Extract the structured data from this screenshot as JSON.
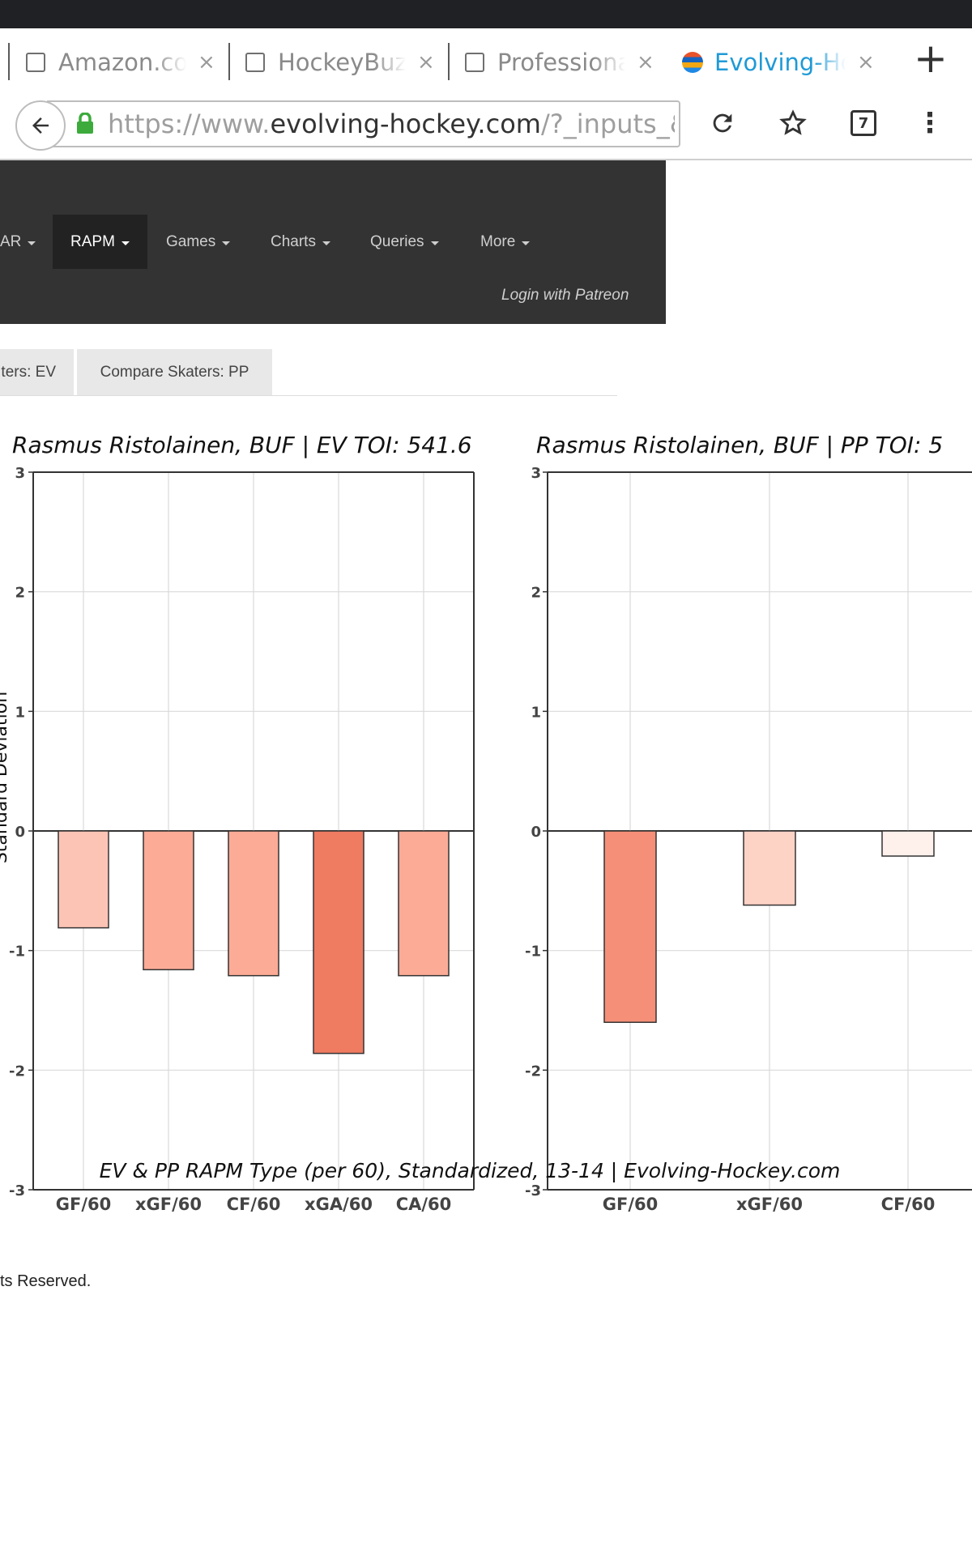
{
  "browser": {
    "tabs": [
      {
        "title": "Amazon.com",
        "active": false
      },
      {
        "title": "HockeyBuzz.",
        "active": false
      },
      {
        "title": "Professional",
        "active": false
      },
      {
        "title": "Evolving-Ho",
        "active": true
      }
    ],
    "close_glyph": "×",
    "new_tab_glyph": "+",
    "url_prefix": "https://www.",
    "url_domain": "evolving-hockey.com",
    "url_suffix": "/?_inputs_&d",
    "tab_count": "7",
    "icons": [
      "back-arrow-icon",
      "lock-icon",
      "reload-icon",
      "star-icon",
      "tab-switcher-icon",
      "more-vert-icon"
    ]
  },
  "nav": {
    "items": [
      {
        "label": "AR"
      },
      {
        "label": "RAPM"
      },
      {
        "label": "Games"
      },
      {
        "label": "Charts"
      },
      {
        "label": "Queries"
      },
      {
        "label": "More"
      }
    ],
    "active": "RAPM",
    "login": "Login with Patreon"
  },
  "subtabs": [
    {
      "label": "ters: EV"
    },
    {
      "label": "Compare Skaters: PP"
    }
  ],
  "footer": {
    "text": "ts Reserved."
  },
  "chart_data": [
    {
      "type": "bar",
      "title": "Rasmus Ristolainen, BUF  |  EV TOI: 541.6",
      "ylabel": "Standard Deviation",
      "ylim": [
        -3,
        3
      ],
      "yticks": [
        "3",
        "2",
        "1",
        "0",
        "-1",
        "-2",
        "-3"
      ],
      "categories": [
        "GF/60",
        "xGF/60",
        "CF/60",
        "xGA/60",
        "CA/60"
      ],
      "values": [
        -0.81,
        -1.16,
        -1.21,
        -1.86,
        -1.21
      ],
      "colors": [
        "#fcc4b5",
        "#fbab96",
        "#fbab96",
        "#ef7b61",
        "#fbab96"
      ],
      "grid": true
    },
    {
      "type": "bar",
      "title": "Rasmus Ristolainen, BUF  |  PP TOI: 5",
      "ylim": [
        -3,
        3
      ],
      "yticks": [
        "3",
        "2",
        "1",
        "0",
        "-1",
        "-2",
        "-3"
      ],
      "categories": [
        "GF/60",
        "xGF/60",
        "CF/60"
      ],
      "values": [
        -1.6,
        -0.62,
        -0.21
      ],
      "colors": [
        "#f58f77",
        "#fdd3c6",
        "#fef0eb"
      ],
      "grid": true
    }
  ],
  "caption": "EV & PP RAPM Type (per 60), Standardized, 13-14   |    Evolving-Hockey.com"
}
